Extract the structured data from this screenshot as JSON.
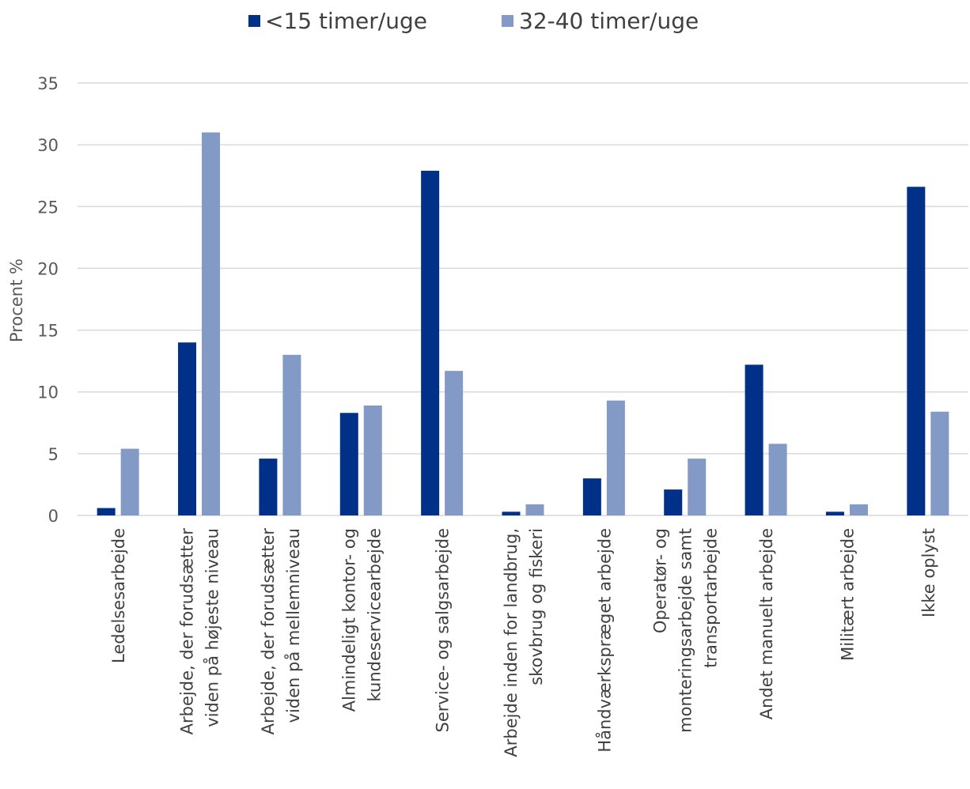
{
  "chart_data": {
    "type": "bar",
    "title": "",
    "xlabel": "",
    "ylabel": "Procent %",
    "ylim": [
      0,
      35
    ],
    "yticks": [
      0,
      5,
      10,
      15,
      20,
      25,
      30,
      35
    ],
    "grid": true,
    "legend_position": "top-center",
    "categories": [
      [
        "Ledelsesarbejde"
      ],
      [
        "Arbejde, der forudsætter",
        "viden på højeste niveau"
      ],
      [
        "Arbejde, der forudsætter",
        "viden på mellemniveau"
      ],
      [
        "Almindeligt kontor- og",
        "kundeservicearbejde"
      ],
      [
        "Service- og salgsarbejde"
      ],
      [
        "Arbejde inden for landbrug,",
        "skovbrug og fiskeri"
      ],
      [
        "Håndværkspræget arbejde"
      ],
      [
        "Operatør- og",
        "monteringsarbejde samt",
        "transportarbejde"
      ],
      [
        "Andet manuelt arbejde"
      ],
      [
        "Militært arbejde"
      ],
      [
        "Ikke oplyst"
      ]
    ],
    "series": [
      {
        "name": "<15 timer/uge",
        "color": "#003087",
        "values": [
          0.6,
          14.0,
          4.6,
          8.3,
          27.9,
          0.3,
          3.0,
          2.1,
          12.2,
          0.3,
          26.6
        ]
      },
      {
        "name": "32-40 timer/uge",
        "color": "#8399c6",
        "values": [
          5.4,
          31.0,
          13.0,
          8.9,
          11.7,
          0.9,
          9.3,
          4.6,
          5.8,
          0.9,
          8.4
        ]
      }
    ]
  }
}
